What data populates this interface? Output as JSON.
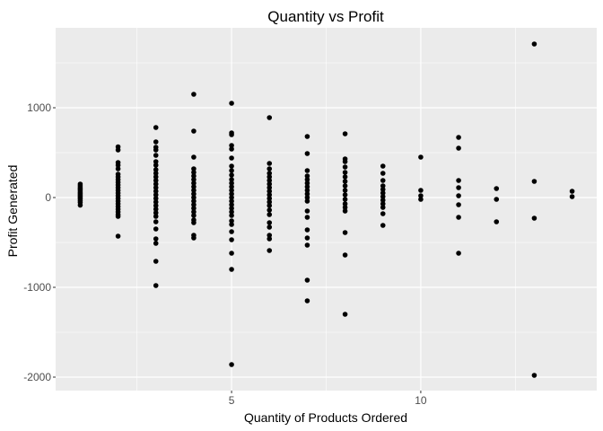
{
  "chart_data": {
    "type": "scatter",
    "title": "Quantity vs Profit",
    "xlabel": "Quantity of Products Ordered",
    "ylabel": "Profit Generated",
    "xlim": [
      0.35,
      14.65
    ],
    "ylim": [
      -2150,
      1890
    ],
    "x_ticks": [
      5,
      10
    ],
    "x_tick_labels": [
      "5",
      "10"
    ],
    "x_minor_ticks": [
      2.5,
      7.5,
      12.5
    ],
    "y_ticks": [
      -2000,
      -1000,
      0,
      1000
    ],
    "y_tick_labels": [
      "-2000",
      "-1000",
      "0",
      "1000"
    ],
    "y_minor_ticks": [
      -1500,
      -500,
      500,
      1500
    ],
    "grid": true,
    "panel_color": "#ebebeb",
    "gridline_color": "#ffffff",
    "point_color": "#000000",
    "points": [
      {
        "x": 1,
        "y": 150
      },
      {
        "x": 1,
        "y": 130
      },
      {
        "x": 1,
        "y": 110
      },
      {
        "x": 1,
        "y": 95
      },
      {
        "x": 1,
        "y": 80
      },
      {
        "x": 1,
        "y": 60
      },
      {
        "x": 1,
        "y": 45
      },
      {
        "x": 1,
        "y": 30
      },
      {
        "x": 1,
        "y": 15
      },
      {
        "x": 1,
        "y": 0
      },
      {
        "x": 1,
        "y": -15
      },
      {
        "x": 1,
        "y": -35
      },
      {
        "x": 1,
        "y": -55
      },
      {
        "x": 1,
        "y": -85
      },
      {
        "x": 2,
        "y": 565
      },
      {
        "x": 2,
        "y": 530
      },
      {
        "x": 2,
        "y": 390
      },
      {
        "x": 2,
        "y": 360
      },
      {
        "x": 2,
        "y": 320
      },
      {
        "x": 2,
        "y": 260
      },
      {
        "x": 2,
        "y": 230
      },
      {
        "x": 2,
        "y": 200
      },
      {
        "x": 2,
        "y": 170
      },
      {
        "x": 2,
        "y": 140
      },
      {
        "x": 2,
        "y": 110
      },
      {
        "x": 2,
        "y": 80
      },
      {
        "x": 2,
        "y": 50
      },
      {
        "x": 2,
        "y": 20
      },
      {
        "x": 2,
        "y": -10
      },
      {
        "x": 2,
        "y": -40
      },
      {
        "x": 2,
        "y": -70
      },
      {
        "x": 2,
        "y": -100
      },
      {
        "x": 2,
        "y": -130
      },
      {
        "x": 2,
        "y": -160
      },
      {
        "x": 2,
        "y": -190
      },
      {
        "x": 2,
        "y": -210
      },
      {
        "x": 2,
        "y": -430
      },
      {
        "x": 3,
        "y": 780
      },
      {
        "x": 3,
        "y": 620
      },
      {
        "x": 3,
        "y": 560
      },
      {
        "x": 3,
        "y": 530
      },
      {
        "x": 3,
        "y": 470
      },
      {
        "x": 3,
        "y": 400
      },
      {
        "x": 3,
        "y": 360
      },
      {
        "x": 3,
        "y": 310
      },
      {
        "x": 3,
        "y": 270
      },
      {
        "x": 3,
        "y": 230
      },
      {
        "x": 3,
        "y": 190
      },
      {
        "x": 3,
        "y": 150
      },
      {
        "x": 3,
        "y": 110
      },
      {
        "x": 3,
        "y": 70
      },
      {
        "x": 3,
        "y": 30
      },
      {
        "x": 3,
        "y": -10
      },
      {
        "x": 3,
        "y": -50
      },
      {
        "x": 3,
        "y": -90
      },
      {
        "x": 3,
        "y": -130
      },
      {
        "x": 3,
        "y": -170
      },
      {
        "x": 3,
        "y": -210
      },
      {
        "x": 3,
        "y": -270
      },
      {
        "x": 3,
        "y": -350
      },
      {
        "x": 3,
        "y": -460
      },
      {
        "x": 3,
        "y": -510
      },
      {
        "x": 3,
        "y": -710
      },
      {
        "x": 3,
        "y": -980
      },
      {
        "x": 4,
        "y": 1150
      },
      {
        "x": 4,
        "y": 740
      },
      {
        "x": 4,
        "y": 450
      },
      {
        "x": 4,
        "y": 320
      },
      {
        "x": 4,
        "y": 280
      },
      {
        "x": 4,
        "y": 240
      },
      {
        "x": 4,
        "y": 200
      },
      {
        "x": 4,
        "y": 160
      },
      {
        "x": 4,
        "y": 120
      },
      {
        "x": 4,
        "y": 80
      },
      {
        "x": 4,
        "y": 40
      },
      {
        "x": 4,
        "y": 0
      },
      {
        "x": 4,
        "y": -40
      },
      {
        "x": 4,
        "y": -80
      },
      {
        "x": 4,
        "y": -120
      },
      {
        "x": 4,
        "y": -160
      },
      {
        "x": 4,
        "y": -200
      },
      {
        "x": 4,
        "y": -250
      },
      {
        "x": 4,
        "y": -280
      },
      {
        "x": 4,
        "y": -420
      },
      {
        "x": 4,
        "y": -450
      },
      {
        "x": 5,
        "y": 1050
      },
      {
        "x": 5,
        "y": 720
      },
      {
        "x": 5,
        "y": 700
      },
      {
        "x": 5,
        "y": 580
      },
      {
        "x": 5,
        "y": 540
      },
      {
        "x": 5,
        "y": 440
      },
      {
        "x": 5,
        "y": 350
      },
      {
        "x": 5,
        "y": 300
      },
      {
        "x": 5,
        "y": 250
      },
      {
        "x": 5,
        "y": 200
      },
      {
        "x": 5,
        "y": 160
      },
      {
        "x": 5,
        "y": 120
      },
      {
        "x": 5,
        "y": 80
      },
      {
        "x": 5,
        "y": 40
      },
      {
        "x": 5,
        "y": 0
      },
      {
        "x": 5,
        "y": -40
      },
      {
        "x": 5,
        "y": -80
      },
      {
        "x": 5,
        "y": -120
      },
      {
        "x": 5,
        "y": -160
      },
      {
        "x": 5,
        "y": -200
      },
      {
        "x": 5,
        "y": -260
      },
      {
        "x": 5,
        "y": -300
      },
      {
        "x": 5,
        "y": -380
      },
      {
        "x": 5,
        "y": -470
      },
      {
        "x": 5,
        "y": -620
      },
      {
        "x": 5,
        "y": -800
      },
      {
        "x": 5,
        "y": -1860
      },
      {
        "x": 6,
        "y": 890
      },
      {
        "x": 6,
        "y": 380
      },
      {
        "x": 6,
        "y": 320
      },
      {
        "x": 6,
        "y": 270
      },
      {
        "x": 6,
        "y": 230
      },
      {
        "x": 6,
        "y": 190
      },
      {
        "x": 6,
        "y": 150
      },
      {
        "x": 6,
        "y": 110
      },
      {
        "x": 6,
        "y": 70
      },
      {
        "x": 6,
        "y": 30
      },
      {
        "x": 6,
        "y": -10
      },
      {
        "x": 6,
        "y": -50
      },
      {
        "x": 6,
        "y": -90
      },
      {
        "x": 6,
        "y": -140
      },
      {
        "x": 6,
        "y": -190
      },
      {
        "x": 6,
        "y": -280
      },
      {
        "x": 6,
        "y": -330
      },
      {
        "x": 6,
        "y": -420
      },
      {
        "x": 6,
        "y": -460
      },
      {
        "x": 6,
        "y": -590
      },
      {
        "x": 7,
        "y": 680
      },
      {
        "x": 7,
        "y": 490
      },
      {
        "x": 7,
        "y": 300
      },
      {
        "x": 7,
        "y": 240
      },
      {
        "x": 7,
        "y": 200
      },
      {
        "x": 7,
        "y": 160
      },
      {
        "x": 7,
        "y": 120
      },
      {
        "x": 7,
        "y": 80
      },
      {
        "x": 7,
        "y": 40
      },
      {
        "x": 7,
        "y": 0
      },
      {
        "x": 7,
        "y": -40
      },
      {
        "x": 7,
        "y": -150
      },
      {
        "x": 7,
        "y": -220
      },
      {
        "x": 7,
        "y": -360
      },
      {
        "x": 7,
        "y": -450
      },
      {
        "x": 7,
        "y": -530
      },
      {
        "x": 7,
        "y": -920
      },
      {
        "x": 7,
        "y": -1150
      },
      {
        "x": 8,
        "y": 710
      },
      {
        "x": 8,
        "y": 430
      },
      {
        "x": 8,
        "y": 400
      },
      {
        "x": 8,
        "y": 340
      },
      {
        "x": 8,
        "y": 280
      },
      {
        "x": 8,
        "y": 230
      },
      {
        "x": 8,
        "y": 180
      },
      {
        "x": 8,
        "y": 130
      },
      {
        "x": 8,
        "y": 80
      },
      {
        "x": 8,
        "y": 30
      },
      {
        "x": 8,
        "y": -20
      },
      {
        "x": 8,
        "y": -70
      },
      {
        "x": 8,
        "y": -110
      },
      {
        "x": 8,
        "y": -150
      },
      {
        "x": 8,
        "y": -390
      },
      {
        "x": 8,
        "y": -640
      },
      {
        "x": 8,
        "y": -1300
      },
      {
        "x": 9,
        "y": 350
      },
      {
        "x": 9,
        "y": 270
      },
      {
        "x": 9,
        "y": 190
      },
      {
        "x": 9,
        "y": 130
      },
      {
        "x": 9,
        "y": 90
      },
      {
        "x": 9,
        "y": 50
      },
      {
        "x": 9,
        "y": 10
      },
      {
        "x": 9,
        "y": -30
      },
      {
        "x": 9,
        "y": -70
      },
      {
        "x": 9,
        "y": -110
      },
      {
        "x": 9,
        "y": -180
      },
      {
        "x": 9,
        "y": -310
      },
      {
        "x": 10,
        "y": 450
      },
      {
        "x": 10,
        "y": 80
      },
      {
        "x": 10,
        "y": 20
      },
      {
        "x": 10,
        "y": -20
      },
      {
        "x": 11,
        "y": 670
      },
      {
        "x": 11,
        "y": 550
      },
      {
        "x": 11,
        "y": 190
      },
      {
        "x": 11,
        "y": 110
      },
      {
        "x": 11,
        "y": 20
      },
      {
        "x": 11,
        "y": -80
      },
      {
        "x": 11,
        "y": -220
      },
      {
        "x": 11,
        "y": -620
      },
      {
        "x": 12,
        "y": 100
      },
      {
        "x": 12,
        "y": -20
      },
      {
        "x": 12,
        "y": -270
      },
      {
        "x": 13,
        "y": 1710
      },
      {
        "x": 13,
        "y": 180
      },
      {
        "x": 13,
        "y": -230
      },
      {
        "x": 13,
        "y": -1980
      },
      {
        "x": 14,
        "y": 70
      },
      {
        "x": 14,
        "y": 10
      }
    ]
  }
}
